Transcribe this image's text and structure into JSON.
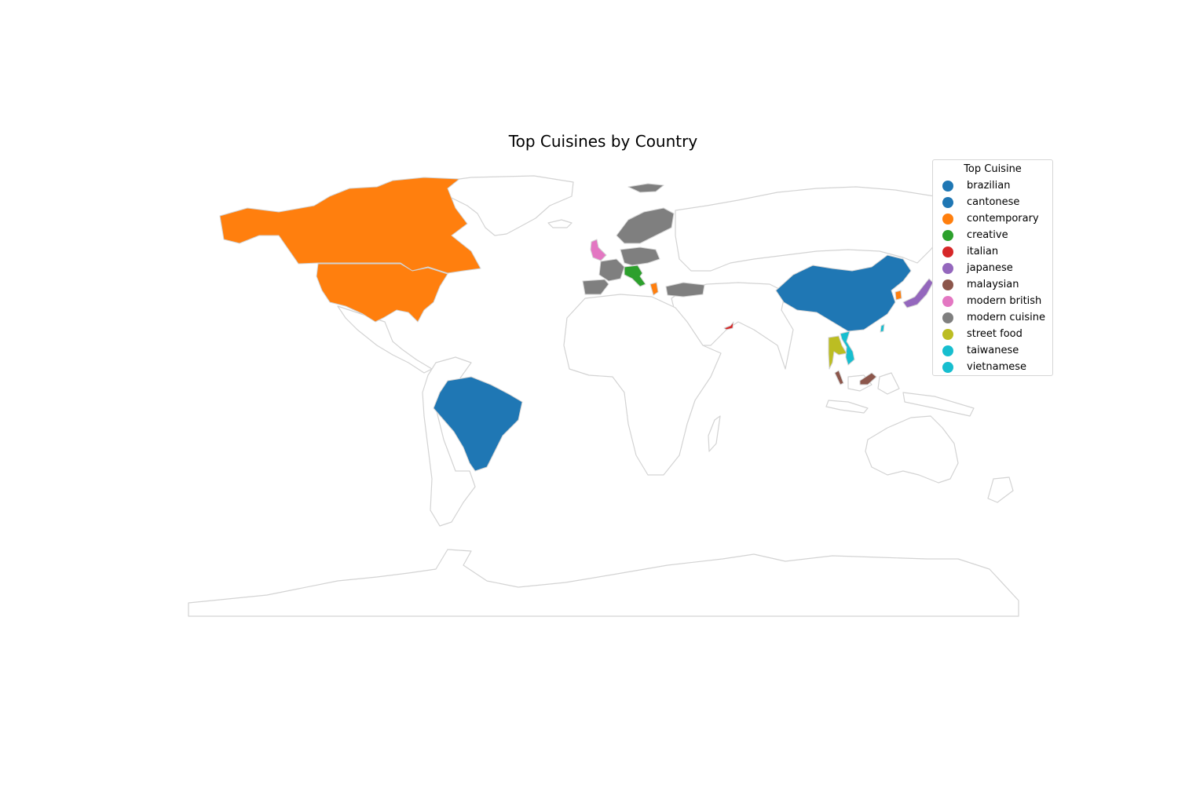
{
  "title": "Top Cuisines by Country",
  "legend": {
    "title": "Top Cuisine",
    "items": [
      {
        "label": "brazilian",
        "color": "#1f77b4"
      },
      {
        "label": "cantonese",
        "color": "#1f77b4"
      },
      {
        "label": "contemporary",
        "color": "#ff7f0e"
      },
      {
        "label": "creative",
        "color": "#2ca02c"
      },
      {
        "label": "italian",
        "color": "#d62728"
      },
      {
        "label": "japanese",
        "color": "#9467bd"
      },
      {
        "label": "malaysian",
        "color": "#8c564b"
      },
      {
        "label": "modern british",
        "color": "#e377c2"
      },
      {
        "label": "modern cuisine",
        "color": "#7f7f7f"
      },
      {
        "label": "street food",
        "color": "#bcbd22"
      },
      {
        "label": "taiwanese",
        "color": "#17becf"
      },
      {
        "label": "vietnamese",
        "color": "#17becf"
      }
    ]
  },
  "countries": [
    {
      "name": "United States",
      "cuisine": "contemporary"
    },
    {
      "name": "Canada",
      "cuisine": "contemporary"
    },
    {
      "name": "Brazil",
      "cuisine": "brazilian"
    },
    {
      "name": "China",
      "cuisine": "cantonese"
    },
    {
      "name": "United Kingdom",
      "cuisine": "modern british"
    },
    {
      "name": "Italy",
      "cuisine": "creative"
    },
    {
      "name": "Japan",
      "cuisine": "japanese"
    },
    {
      "name": "Malaysia",
      "cuisine": "malaysian"
    },
    {
      "name": "Thailand",
      "cuisine": "street food"
    },
    {
      "name": "Vietnam",
      "cuisine": "vietnamese"
    },
    {
      "name": "Taiwan",
      "cuisine": "taiwanese"
    },
    {
      "name": "United Arab Emirates",
      "cuisine": "italian"
    },
    {
      "name": "South Korea",
      "cuisine": "contemporary"
    },
    {
      "name": "Greece",
      "cuisine": "contemporary"
    },
    {
      "name": "France",
      "cuisine": "modern cuisine"
    },
    {
      "name": "Spain",
      "cuisine": "modern cuisine"
    },
    {
      "name": "Germany",
      "cuisine": "modern cuisine"
    },
    {
      "name": "Scandinavia",
      "cuisine": "modern cuisine"
    },
    {
      "name": "Turkey",
      "cuisine": "modern cuisine"
    },
    {
      "name": "Svalbard",
      "cuisine": "modern cuisine"
    }
  ]
}
